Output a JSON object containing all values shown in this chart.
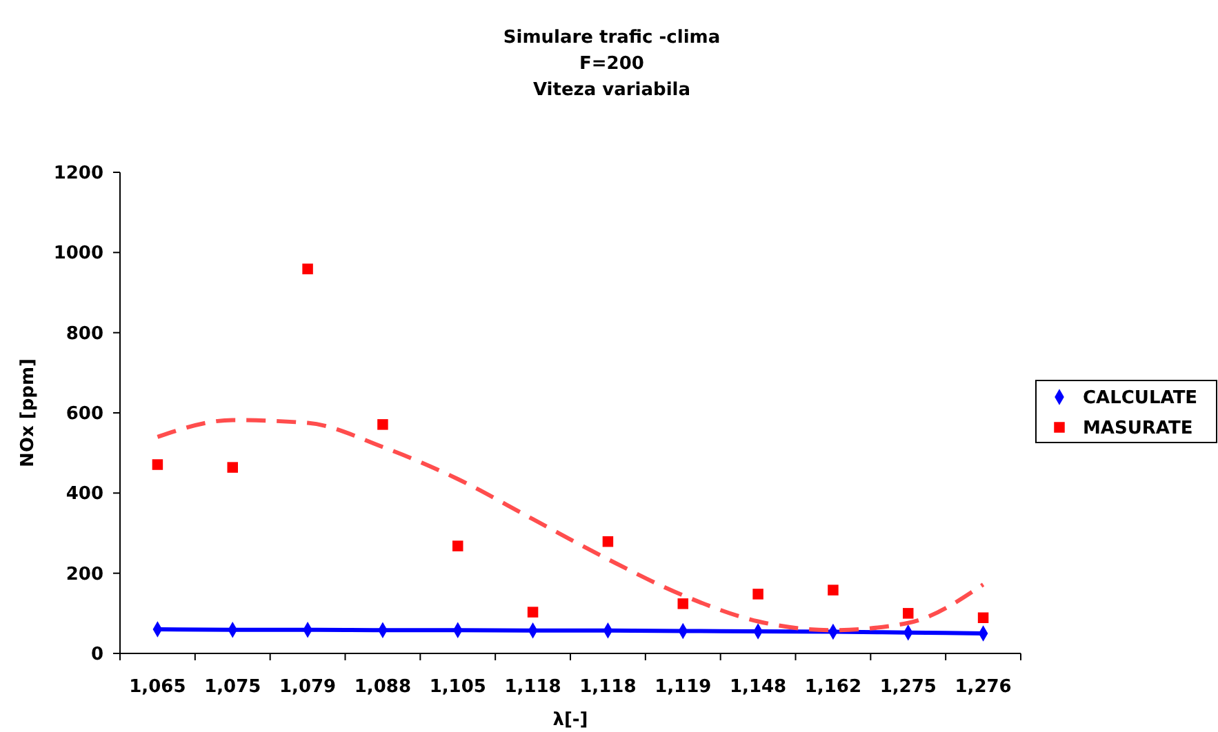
{
  "chart_data": {
    "type": "line",
    "title": "Simulare trafic -clima\nF=200\nViteza variabila",
    "xlabel": "λ[-]",
    "ylabel": "NOx [ppm]",
    "categories": [
      "1,065",
      "1,075",
      "1,079",
      "1,088",
      "1,105",
      "1,118",
      "1,118",
      "1,119",
      "1,148",
      "1,162",
      "1,275",
      "1,276"
    ],
    "ylim": [
      0,
      1200
    ],
    "yticks": [
      0,
      200,
      400,
      600,
      800,
      1000,
      1200
    ],
    "grid": false,
    "legend": "right",
    "series": [
      {
        "name": "CALCULATE",
        "color": "#0000ff",
        "marker": "diamond",
        "line_style": "solid",
        "values": [
          60,
          59,
          59,
          58,
          58,
          57,
          57,
          56,
          55,
          54,
          52,
          50
        ]
      },
      {
        "name": "MASURATE",
        "type": "scatter",
        "color": "#ff0000",
        "marker": "square",
        "values": [
          471,
          464,
          959,
          571,
          268,
          103,
          279,
          124,
          148,
          158,
          100,
          89
        ]
      },
      {
        "type": "line",
        "color": "#ff4d4d",
        "marker": "none",
        "line_style": "dashed",
        "values": [
          540,
          582,
          575,
          515,
          435,
          335,
          235,
          145,
          80,
          58,
          76,
          172
        ]
      }
    ]
  }
}
